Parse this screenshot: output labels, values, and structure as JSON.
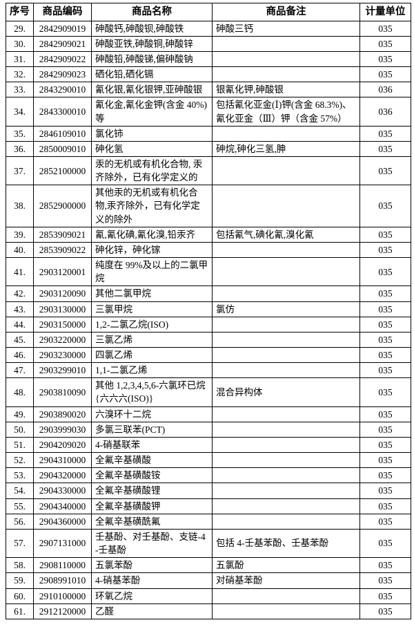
{
  "table": {
    "headers": [
      "序号",
      "商品编码",
      "商品名称",
      "商品备注",
      "计量单位"
    ],
    "rows": [
      {
        "no": "29.",
        "code": "2842909019",
        "name": "砷酸钙,砷酸钡,砷酸铁",
        "remark": "砷酸三钙",
        "unit": "035"
      },
      {
        "no": "30.",
        "code": "2842909021",
        "name": "砷酸亚铁,砷酸铜,砷酸锌",
        "remark": "",
        "unit": "035"
      },
      {
        "no": "31.",
        "code": "2842909022",
        "name": "砷酸铅,砷酸锑,偏砷酸钠",
        "remark": "",
        "unit": "035"
      },
      {
        "no": "32.",
        "code": "2842909023",
        "name": "硒化铅,硒化镉",
        "remark": "",
        "unit": "035"
      },
      {
        "no": "33.",
        "code": "2843290010",
        "name": "氰化银,氰化银钾,亚砷酸银",
        "remark": "银氰化钾,砷酸银",
        "unit": "036"
      },
      {
        "no": "34.",
        "code": "2843300010",
        "name": "氰化金,氰化金钾(含金 40%)等",
        "remark": "包括氰化亚金(Ⅰ)钾(含金 68.3%)、氰化亚金（Ⅲ）钾（含金 57%）",
        "unit": "036"
      },
      {
        "no": "35.",
        "code": "2846109010",
        "name": "氯化铈",
        "remark": "",
        "unit": "035"
      },
      {
        "no": "36.",
        "code": "2850009010",
        "name": "砷化氢",
        "remark": "砷烷,砷化三氢,胂",
        "unit": "035"
      },
      {
        "no": "37.",
        "code": "2852100000",
        "name": "汞的无机或有机化合物, 汞齐除外，已有化学定义的",
        "remark": "",
        "unit": "035"
      },
      {
        "no": "38.",
        "code": "2852900000",
        "name": "其他汞的无机或有机化合物,汞齐除外，已有化学定义的除外",
        "remark": "",
        "unit": "035"
      },
      {
        "no": "39.",
        "code": "2853909021",
        "name": "氰,氰化碘,氰化溴,铅汞齐",
        "remark": "包括氰气,碘化氰,溴化氰",
        "unit": "035"
      },
      {
        "no": "40.",
        "code": "2853909022",
        "name": "砷化锌，砷化镓",
        "remark": "",
        "unit": "035"
      },
      {
        "no": "41.",
        "code": "2903120001",
        "name": "纯度在 99%及以上的二氯甲烷",
        "remark": "",
        "unit": "035"
      },
      {
        "no": "42.",
        "code": "2903120090",
        "name": "其他二氯甲烷",
        "remark": "",
        "unit": "035"
      },
      {
        "no": "43.",
        "code": "2903130000",
        "name": "三氯甲烷",
        "remark": "氯仿",
        "unit": "035"
      },
      {
        "no": "44.",
        "code": "2903150000",
        "name": "1,2-二氯乙烷(ISO)",
        "remark": "",
        "unit": "035"
      },
      {
        "no": "45.",
        "code": "2903220000",
        "name": "三氯乙烯",
        "remark": "",
        "unit": "035"
      },
      {
        "no": "46.",
        "code": "2903230000",
        "name": "四氯乙烯",
        "remark": "",
        "unit": "035"
      },
      {
        "no": "47.",
        "code": "2903299010",
        "name": "1,1-二氯乙烯",
        "remark": "",
        "unit": "035"
      },
      {
        "no": "48.",
        "code": "2903810090",
        "name": "其他 1,2,3,4,5,6-六氯环已烷{六六六(ISO)}",
        "remark": "混合异构体",
        "unit": "035"
      },
      {
        "no": "49.",
        "code": "2903890020",
        "name": "六溴环十二烷",
        "remark": "",
        "unit": "035"
      },
      {
        "no": "50.",
        "code": "2903999030",
        "name": "多氯三联苯(PCT)",
        "remark": "",
        "unit": "035"
      },
      {
        "no": "51.",
        "code": "2904209020",
        "name": "4-硝基联苯",
        "remark": "",
        "unit": "035"
      },
      {
        "no": "52.",
        "code": "2904310000",
        "name": "全氟辛基磺酸",
        "remark": "",
        "unit": "035"
      },
      {
        "no": "53.",
        "code": "2904320000",
        "name": "全氟辛基磺酸铵",
        "remark": "",
        "unit": "035"
      },
      {
        "no": "54.",
        "code": "2904330000",
        "name": "全氟辛基磺酸锂",
        "remark": "",
        "unit": "035"
      },
      {
        "no": "55.",
        "code": "2904340000",
        "name": "全氟辛基磺酸钾",
        "remark": "",
        "unit": "035"
      },
      {
        "no": "56.",
        "code": "2904360000",
        "name": "全氟辛基磺酰氟",
        "remark": "",
        "unit": "035"
      },
      {
        "no": "57.",
        "code": "2907131000",
        "name": "壬基酚、对壬基酚、支链-4-壬基酚",
        "remark": "包括 4-壬基苯酚、壬基苯酚",
        "unit": "035"
      },
      {
        "no": "58.",
        "code": "2908110000",
        "name": "五氯苯酚",
        "remark": "五氯酚",
        "unit": "035"
      },
      {
        "no": "59.",
        "code": "2908991010",
        "name": "4-硝基苯酚",
        "remark": "对硝基苯酚",
        "unit": "035"
      },
      {
        "no": "60.",
        "code": "2910100000",
        "name": "环氧乙烷",
        "remark": "",
        "unit": "035"
      },
      {
        "no": "61.",
        "code": "2912120000",
        "name": "乙醛",
        "remark": "",
        "unit": "035"
      }
    ]
  },
  "colors": {
    "border": "#000000",
    "text": "#000000",
    "background": "#ffffff"
  }
}
